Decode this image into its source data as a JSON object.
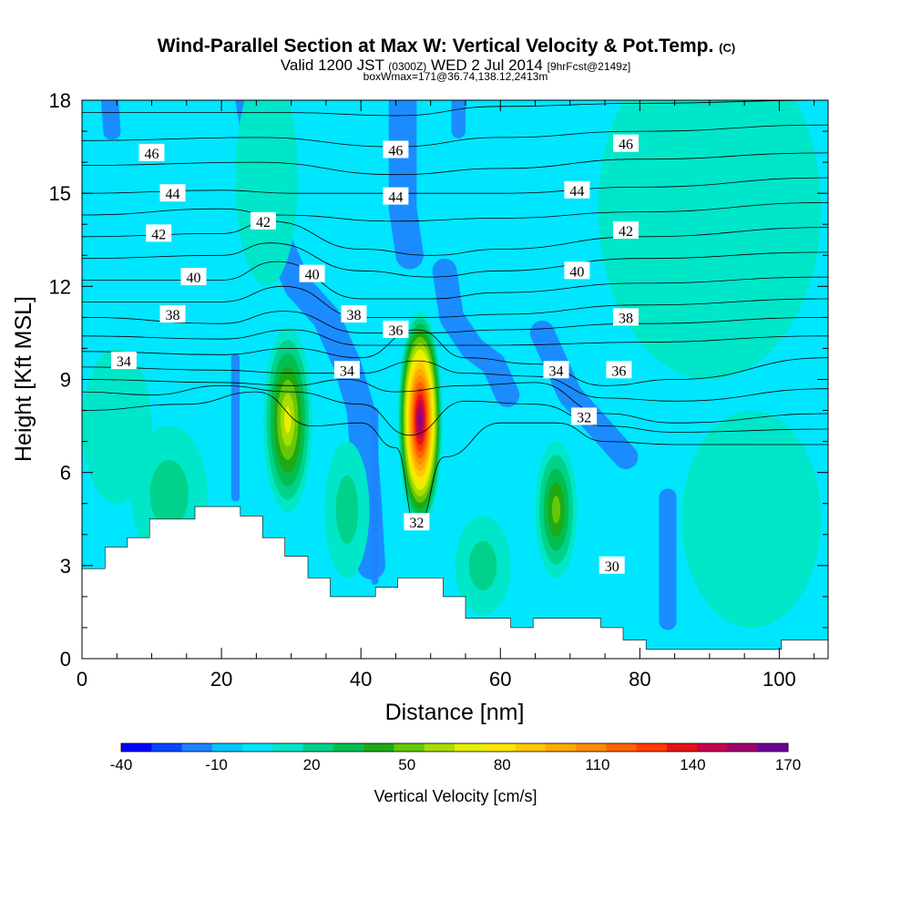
{
  "title": "Wind-Parallel Section at Max W: Vertical Velocity & Pot.Temp.",
  "title_mark": "(C)",
  "valid_prefix": "Valid 1200 JST",
  "valid_zone": "(0300Z)",
  "valid_date": "WED 2 Jul 2014",
  "valid_fcst": "[9hrFcst@2149z]",
  "box_note": "boxWmax=171@36.74,138.12,2413m",
  "chart_data": {
    "type": "heatmap",
    "xlabel": "Distance [nm]",
    "ylabel": "Height [Kft MSL]",
    "xlim": [
      0,
      107
    ],
    "ylim": [
      0,
      18
    ],
    "xticks": [
      0,
      20,
      40,
      60,
      80,
      100
    ],
    "yticks": [
      0,
      3,
      6,
      9,
      12,
      15,
      18
    ],
    "colorbar": {
      "label": "Vertical Velocity [cm/s]",
      "ticks": [
        -40,
        -10,
        20,
        50,
        80,
        110,
        140,
        170
      ],
      "levels": [
        -40,
        -30,
        -20,
        -10,
        0,
        10,
        20,
        30,
        40,
        50,
        60,
        70,
        80,
        90,
        100,
        110,
        120,
        130,
        140,
        150,
        160,
        170
      ],
      "colors": [
        "#0000ff",
        "#0a46ff",
        "#1e82ff",
        "#00c8ff",
        "#00e6ff",
        "#00e6c8",
        "#00d28c",
        "#00be50",
        "#1eaa14",
        "#64c80a",
        "#aadc00",
        "#e6f000",
        "#ffe600",
        "#ffc800",
        "#ffaa00",
        "#ff8c00",
        "#ff6400",
        "#ff3c00",
        "#e61414",
        "#c80050",
        "#a0006e",
        "#6e0096"
      ]
    },
    "background_w": 5,
    "terrain": [
      [
        0,
        2.9
      ],
      [
        3.3,
        2.9
      ],
      [
        3.3,
        3.6
      ],
      [
        6.5,
        3.6
      ],
      [
        6.5,
        3.9
      ],
      [
        9.7,
        3.9
      ],
      [
        9.7,
        4.5
      ],
      [
        16.2,
        4.5
      ],
      [
        16.2,
        4.9
      ],
      [
        22.7,
        4.9
      ],
      [
        22.7,
        4.6
      ],
      [
        25.9,
        4.6
      ],
      [
        25.9,
        3.9
      ],
      [
        29.1,
        3.9
      ],
      [
        29.1,
        3.3
      ],
      [
        32.4,
        3.3
      ],
      [
        32.4,
        2.6
      ],
      [
        35.6,
        2.6
      ],
      [
        35.6,
        2.0
      ],
      [
        42.1,
        2.0
      ],
      [
        42.1,
        2.3
      ],
      [
        45.3,
        2.3
      ],
      [
        45.3,
        2.6
      ],
      [
        51.8,
        2.6
      ],
      [
        51.8,
        2.0
      ],
      [
        55,
        2.0
      ],
      [
        55,
        1.3
      ],
      [
        61.5,
        1.3
      ],
      [
        61.5,
        1.0
      ],
      [
        64.7,
        1.0
      ],
      [
        64.7,
        1.3
      ],
      [
        74.4,
        1.3
      ],
      [
        74.4,
        1.0
      ],
      [
        77.6,
        1.0
      ],
      [
        77.6,
        0.6
      ],
      [
        80.9,
        0.6
      ],
      [
        80.9,
        0.3
      ],
      [
        100.3,
        0.3
      ],
      [
        100.3,
        0.6
      ],
      [
        107,
        0.6
      ]
    ],
    "w_cells": [
      {
        "x": 48.5,
        "y": 7.7,
        "rx": 3.2,
        "ry": 3.5,
        "w": 170
      },
      {
        "x": 29.5,
        "y": 7.7,
        "rx": 3.5,
        "ry": 3.0,
        "w": 70
      },
      {
        "x": 68.0,
        "y": 4.8,
        "rx": 3.0,
        "ry": 2.2,
        "w": 50
      },
      {
        "x": 57.5,
        "y": 3.0,
        "rx": 4.0,
        "ry": 1.6,
        "w": 27
      },
      {
        "x": 12.5,
        "y": 5.3,
        "rx": 5.5,
        "ry": 2.2,
        "w": 22
      },
      {
        "x": 38.0,
        "y": 4.8,
        "rx": 3.2,
        "ry": 2.2,
        "w": 22
      },
      {
        "x": 96.0,
        "y": 4.5,
        "rx": 10.0,
        "ry": 3.5,
        "w": 14
      },
      {
        "x": 90.0,
        "y": 14.5,
        "rx": 16.0,
        "ry": 5.5,
        "w": 11
      },
      {
        "x": 26.5,
        "y": 15.5,
        "rx": 4.5,
        "ry": 3.5,
        "w": 11
      },
      {
        "x": 5.0,
        "y": 7.5,
        "rx": 5.0,
        "ry": 2.5,
        "w": 11
      }
    ],
    "w_bands": [
      {
        "points": [
          [
            24,
            18
          ],
          [
            27,
            14
          ],
          [
            31,
            12
          ],
          [
            35,
            11
          ],
          [
            38,
            9.5
          ],
          [
            40,
            8
          ],
          [
            41,
            5
          ],
          [
            41.5,
            3
          ]
        ],
        "width": 4.0,
        "w": -14
      },
      {
        "points": [
          [
            46,
            18
          ],
          [
            46,
            14.5
          ],
          [
            47,
            13
          ]
        ],
        "width": 4.0,
        "w": -14
      },
      {
        "points": [
          [
            52,
            12.5
          ],
          [
            53,
            11
          ],
          [
            56,
            10
          ],
          [
            59,
            9.5
          ],
          [
            61,
            8.5
          ]
        ],
        "width": 3.5,
        "w": -14
      },
      {
        "points": [
          [
            66,
            10.5
          ],
          [
            70,
            8.5
          ],
          [
            74,
            7.5
          ],
          [
            78,
            6.5
          ]
        ],
        "width": 3.5,
        "w": -14
      },
      {
        "points": [
          [
            84,
            5.2
          ],
          [
            84,
            3
          ],
          [
            84,
            1.2
          ]
        ],
        "width": 2.5,
        "w": -14
      },
      {
        "points": [
          [
            4,
            18
          ],
          [
            4.3,
            17
          ]
        ],
        "width": 2.5,
        "w": -14
      },
      {
        "points": [
          [
            22,
            9.7
          ],
          [
            22,
            5.2
          ]
        ],
        "width": 1.2,
        "w": -14
      },
      {
        "points": [
          [
            42,
            8
          ],
          [
            42,
            2.5
          ]
        ],
        "width": 1.0,
        "w": -14
      },
      {
        "points": [
          [
            54,
            18
          ],
          [
            54,
            17
          ]
        ],
        "width": 2.0,
        "w": -14
      }
    ],
    "theta_levels": [
      {
        "value": 47,
        "points": [
          [
            0,
            17.6
          ],
          [
            30,
            17.6
          ],
          [
            45,
            17.5
          ],
          [
            60,
            17.8
          ],
          [
            80,
            17.9
          ],
          [
            107,
            18
          ]
        ]
      },
      {
        "value": 46,
        "points": [
          [
            0,
            16.7
          ],
          [
            25,
            16.8
          ],
          [
            45,
            16.5
          ],
          [
            60,
            16.8
          ],
          [
            80,
            17.0
          ],
          [
            107,
            17.2
          ]
        ]
      },
      {
        "value": 45,
        "points": [
          [
            0,
            15.9
          ],
          [
            25,
            16
          ],
          [
            45,
            15.6
          ],
          [
            60,
            15.8
          ],
          [
            80,
            16.1
          ],
          [
            107,
            16.3
          ]
        ]
      },
      {
        "value": 44,
        "points": [
          [
            0,
            15.0
          ],
          [
            20,
            15.1
          ],
          [
            30,
            15
          ],
          [
            45,
            15
          ],
          [
            60,
            15
          ],
          [
            80,
            15.2
          ],
          [
            107,
            15.5
          ]
        ]
      },
      {
        "value": 43,
        "points": [
          [
            0,
            14.3
          ],
          [
            20,
            14.5
          ],
          [
            28,
            14.3
          ],
          [
            45,
            14.1
          ],
          [
            60,
            14.2
          ],
          [
            80,
            14.4
          ],
          [
            107,
            14.7
          ]
        ]
      },
      {
        "value": 42,
        "points": [
          [
            0,
            13.6
          ],
          [
            20,
            13.7
          ],
          [
            27,
            14.1
          ],
          [
            40,
            13.2
          ],
          [
            50,
            13.0
          ],
          [
            60,
            13.2
          ],
          [
            80,
            13.6
          ],
          [
            107,
            13.9
          ]
        ]
      },
      {
        "value": 41,
        "points": [
          [
            0,
            12.9
          ],
          [
            20,
            13.0
          ],
          [
            27,
            13.4
          ],
          [
            40,
            12.5
          ],
          [
            50,
            12.3
          ],
          [
            60,
            12.5
          ],
          [
            80,
            12.9
          ],
          [
            107,
            13.1
          ]
        ]
      },
      {
        "value": 40,
        "points": [
          [
            0,
            12.2
          ],
          [
            20,
            12.2
          ],
          [
            28,
            12.8
          ],
          [
            40,
            11.6
          ],
          [
            50,
            11.6
          ],
          [
            60,
            11.8
          ],
          [
            80,
            12.1
          ],
          [
            107,
            12.3
          ]
        ]
      },
      {
        "value": 39,
        "points": [
          [
            0,
            11.5
          ],
          [
            20,
            11.5
          ],
          [
            29,
            12.0
          ],
          [
            40,
            11.0
          ],
          [
            50,
            11.0
          ],
          [
            60,
            11.1
          ],
          [
            80,
            11.4
          ],
          [
            107,
            11.6
          ]
        ]
      },
      {
        "value": 38,
        "points": [
          [
            0,
            11.0
          ],
          [
            20,
            10.8
          ],
          [
            29,
            11.2
          ],
          [
            40,
            10.5
          ],
          [
            50,
            10.5
          ],
          [
            60,
            10.6
          ],
          [
            80,
            10.8
          ],
          [
            107,
            11.0
          ]
        ]
      },
      {
        "value": 37,
        "points": [
          [
            0,
            10.4
          ],
          [
            20,
            10.3
          ],
          [
            30,
            10.6
          ],
          [
            40,
            10.1
          ],
          [
            50,
            10.1
          ],
          [
            60,
            10.1
          ],
          [
            80,
            10.2
          ],
          [
            107,
            10.4
          ]
        ]
      },
      {
        "value": 36,
        "points": [
          [
            0,
            9.9
          ],
          [
            20,
            9.8
          ],
          [
            30,
            10.0
          ],
          [
            40,
            9.7
          ],
          [
            48,
            10.6
          ],
          [
            55,
            9.7
          ],
          [
            65,
            9.5
          ],
          [
            75,
            8.8
          ],
          [
            85,
            9.0
          ],
          [
            107,
            9.7
          ]
        ]
      },
      {
        "value": 35,
        "points": [
          [
            0,
            9.4
          ],
          [
            20,
            9.3
          ],
          [
            30,
            9.2
          ],
          [
            40,
            9.2
          ],
          [
            48,
            9.6
          ],
          [
            55,
            9.2
          ],
          [
            65,
            9.1
          ],
          [
            75,
            8.4
          ],
          [
            85,
            8.3
          ],
          [
            107,
            8.7
          ]
        ]
      },
      {
        "value": 34,
        "points": [
          [
            0,
            9.0
          ],
          [
            20,
            8.9
          ],
          [
            30,
            8.8
          ],
          [
            38,
            9.0
          ],
          [
            45,
            8.6
          ],
          [
            55,
            8.8
          ],
          [
            65,
            8.9
          ],
          [
            75,
            7.9
          ],
          [
            85,
            7.6
          ],
          [
            107,
            7.9
          ]
        ]
      },
      {
        "value": 33,
        "points": [
          [
            0,
            8.6
          ],
          [
            10,
            8.5
          ],
          [
            20,
            8.8
          ],
          [
            30,
            8.6
          ],
          [
            40,
            8.2
          ],
          [
            47,
            7.2
          ],
          [
            55,
            8.3
          ],
          [
            65,
            8.2
          ],
          [
            75,
            7.5
          ],
          [
            85,
            7.3
          ],
          [
            107,
            7.4
          ]
        ]
      },
      {
        "value": 32,
        "points": [
          [
            0,
            8.0
          ],
          [
            15,
            8.2
          ],
          [
            25,
            8.6
          ],
          [
            33,
            7.5
          ],
          [
            40,
            7.6
          ],
          [
            45,
            6.8
          ],
          [
            48,
            4.2
          ],
          [
            52,
            6.5
          ],
          [
            60,
            7.6
          ],
          [
            68,
            7.6
          ],
          [
            75,
            7.0
          ],
          [
            85,
            6.9
          ],
          [
            107,
            6.9
          ]
        ]
      }
    ],
    "theta_labels": [
      {
        "text": "46",
        "x": 10,
        "y": 16.3
      },
      {
        "text": "46",
        "x": 45,
        "y": 16.4
      },
      {
        "text": "46",
        "x": 78,
        "y": 16.6
      },
      {
        "text": "44",
        "x": 13,
        "y": 15.0
      },
      {
        "text": "44",
        "x": 45,
        "y": 14.9
      },
      {
        "text": "44",
        "x": 71,
        "y": 15.1
      },
      {
        "text": "42",
        "x": 11,
        "y": 13.7
      },
      {
        "text": "42",
        "x": 26,
        "y": 14.1
      },
      {
        "text": "42",
        "x": 78,
        "y": 13.8
      },
      {
        "text": "40",
        "x": 16,
        "y": 12.3
      },
      {
        "text": "40",
        "x": 33,
        "y": 12.4
      },
      {
        "text": "40",
        "x": 71,
        "y": 12.5
      },
      {
        "text": "38",
        "x": 13,
        "y": 11.1
      },
      {
        "text": "38",
        "x": 39,
        "y": 11.1
      },
      {
        "text": "38",
        "x": 78,
        "y": 11.0
      },
      {
        "text": "36",
        "x": 45,
        "y": 10.6
      },
      {
        "text": "36",
        "x": 77,
        "y": 9.3
      },
      {
        "text": "34",
        "x": 6,
        "y": 9.6
      },
      {
        "text": "34",
        "x": 38,
        "y": 9.3
      },
      {
        "text": "34",
        "x": 68,
        "y": 9.3
      },
      {
        "text": "32",
        "x": 72,
        "y": 7.8
      },
      {
        "text": "32",
        "x": 48,
        "y": 4.4
      },
      {
        "text": "30",
        "x": 76,
        "y": 3.0
      }
    ]
  }
}
